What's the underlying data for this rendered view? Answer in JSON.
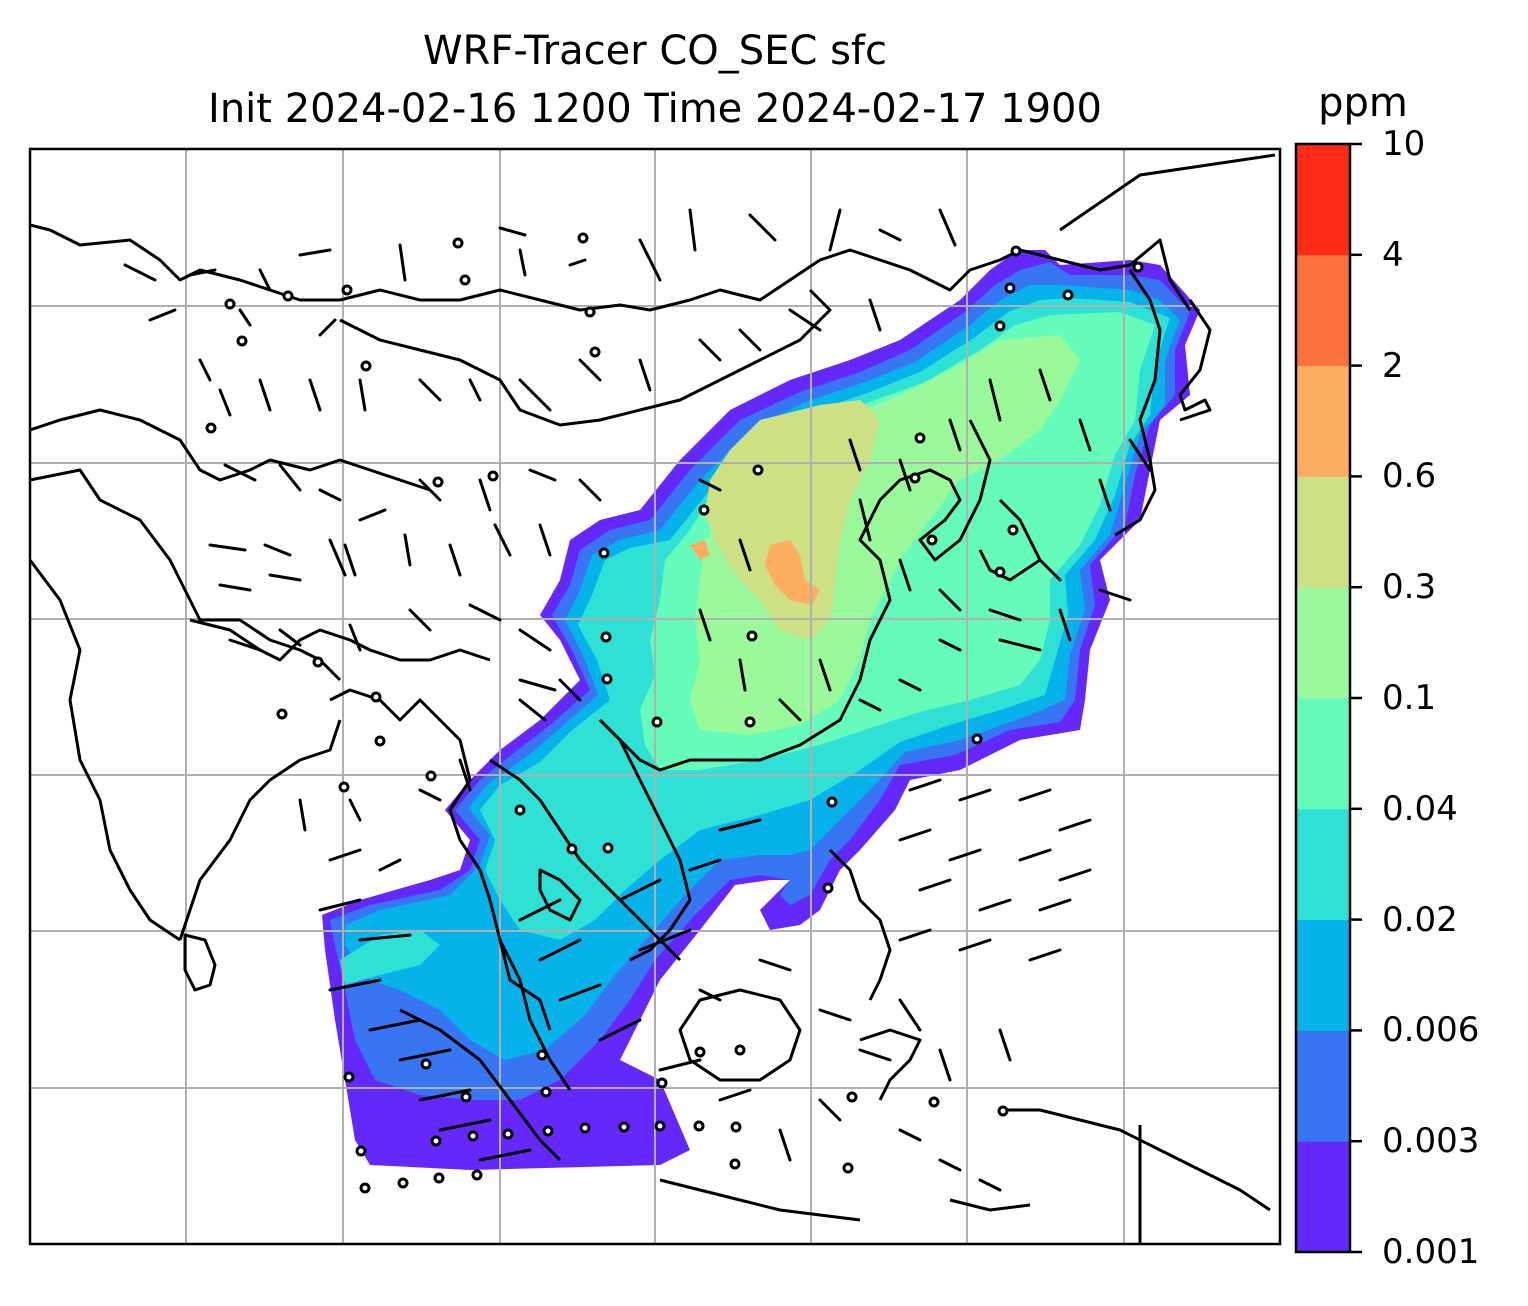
{
  "title": {
    "line1": "WRF-Tracer CO_SEC sfc",
    "line2": "Init 2024-02-16 1200 Time 2024-02-17 1900"
  },
  "colorbar": {
    "unit": "ppm",
    "levels": [
      "0.001",
      "0.003",
      "0.006",
      "0.02",
      "0.04",
      "0.1",
      "0.3",
      "0.6",
      "2",
      "4",
      "10"
    ],
    "colors": [
      "#6428fa",
      "#3775f2",
      "#05b2ea",
      "#2fe0d5",
      "#65fbba",
      "#9af99a",
      "#cde184",
      "#fdad60",
      "#fd733d",
      "#fe2b17"
    ]
  },
  "map": {
    "gridlines": "on",
    "grid_color": "#b0b0b0",
    "coastline_color": "#000000"
  }
}
